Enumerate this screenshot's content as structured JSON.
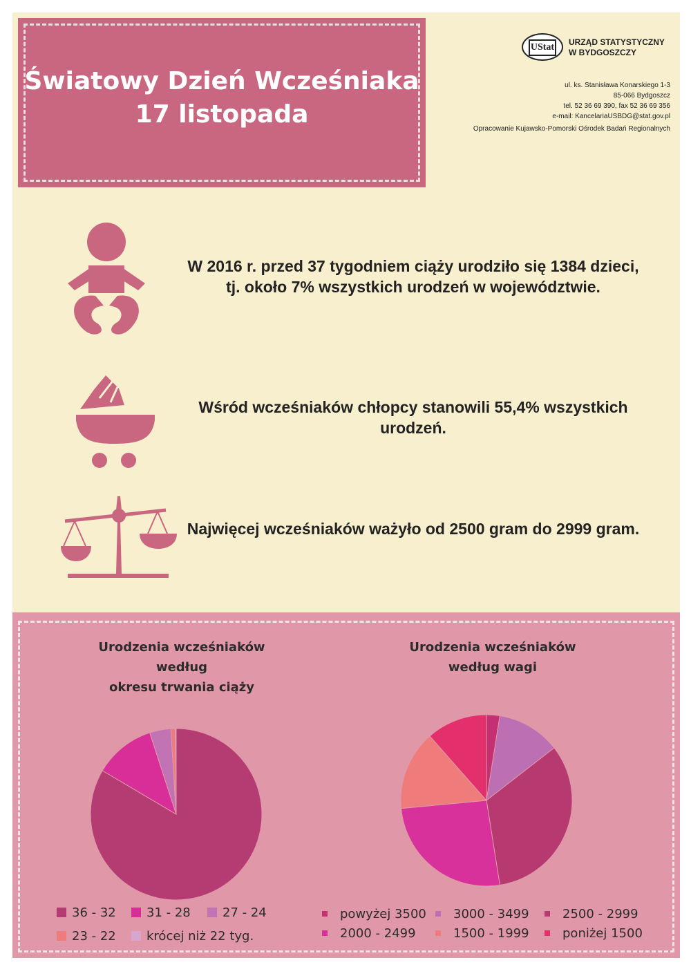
{
  "title": {
    "line1": "Światowy Dzień Wcześniaka",
    "line2": "17 listopada"
  },
  "institution": {
    "logo": "UStat",
    "name_line1": "URZĄD STATYSTYCZNY",
    "name_line2": "W BYDGOSZCZY",
    "address": "ul. ks. Stanisława Konarskiego 1-3\n85-066 Bydgoszcz\ntel. 52 36 69 390, fax 52 36 69 356\ne-mail: KancelariaUSBDG@stat.gov.pl",
    "credit": "Opracowanie Kujawsko-Pomorski Ośrodek Badań Regionalnych"
  },
  "facts": [
    {
      "icon": "baby-icon",
      "text": "W 2016 r. przed 37 tygodniem ciąży urodziło się 1384 dzieci, tj. około 7% wszystkich urodzeń w województwie."
    },
    {
      "icon": "stroller-icon",
      "text": "Wśród wcześniaków chłopcy stanowili 55,4% wszystkich urodzeń."
    },
    {
      "icon": "scale-icon",
      "text": "Najwięcej wcześniaków ważyło od 2500 gram do 2999 gram."
    }
  ],
  "colors": {
    "title_bg": "#c8677f",
    "page_bg": "#f8efce",
    "bottom_bg": "#e098a8",
    "icon": "#c8677f"
  },
  "chart_data": [
    {
      "type": "pie",
      "title": "Urodzenia wcześniaków\nwedług\nokresu trwania ciąży",
      "categories": [
        "36 - 32",
        "31 - 28",
        "27 - 24",
        "23 - 22",
        "krócej niż 22 tyg."
      ],
      "values": [
        83.5,
        11.5,
        4.0,
        0.8,
        0.2
      ],
      "colors": [
        "#b53c73",
        "#d72f97",
        "#c173b3",
        "#ef7b7d",
        "#d7a6cf"
      ],
      "start_angle_deg": 0
    },
    {
      "type": "pie",
      "title": "Urodzenia wcześniaków\nwedług wagi",
      "categories": [
        "powyżej 3500",
        "3000 - 3499",
        "2500 - 2999",
        "2000 - 2499",
        "1500 - 1999",
        "poniżej 1500"
      ],
      "values": [
        2.5,
        12.0,
        33.0,
        26.0,
        15.0,
        11.5
      ],
      "colors": [
        "#c43071",
        "#bd6fb3",
        "#b6396f",
        "#d8319b",
        "#ef7b7a",
        "#e42f6d"
      ],
      "start_angle_deg": 0
    }
  ]
}
